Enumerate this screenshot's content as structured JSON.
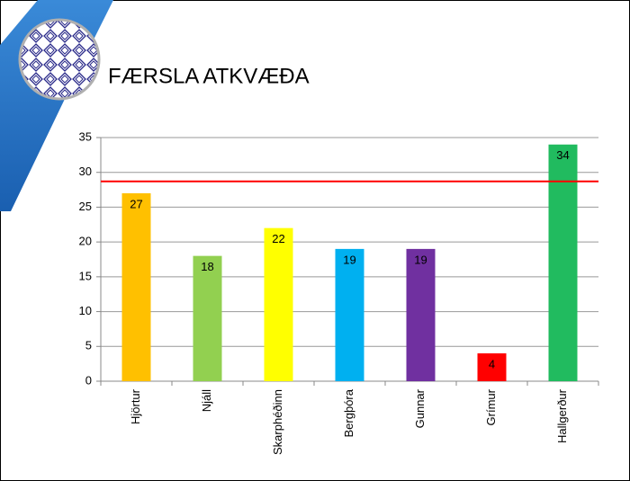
{
  "chart_data": {
    "type": "bar",
    "title": "FÆRSLA ATKVÆÐA",
    "categories": [
      "Hjörtur",
      "Njáll",
      "Skarphéðinn",
      "Bergþóra",
      "Gunnar",
      "Grímur",
      "Hallgerður"
    ],
    "values": [
      27,
      18,
      22,
      19,
      19,
      4,
      34
    ],
    "colors": [
      "#ffc000",
      "#92d050",
      "#ffff00",
      "#00b0f0",
      "#7030a0",
      "#ff0000",
      "#21bb5f"
    ],
    "ylim": [
      0,
      35
    ],
    "yticks": [
      0,
      5,
      10,
      15,
      20,
      25,
      30,
      35
    ],
    "grid": true,
    "threshold": {
      "value": 28.7,
      "color": "#ff0000"
    }
  }
}
